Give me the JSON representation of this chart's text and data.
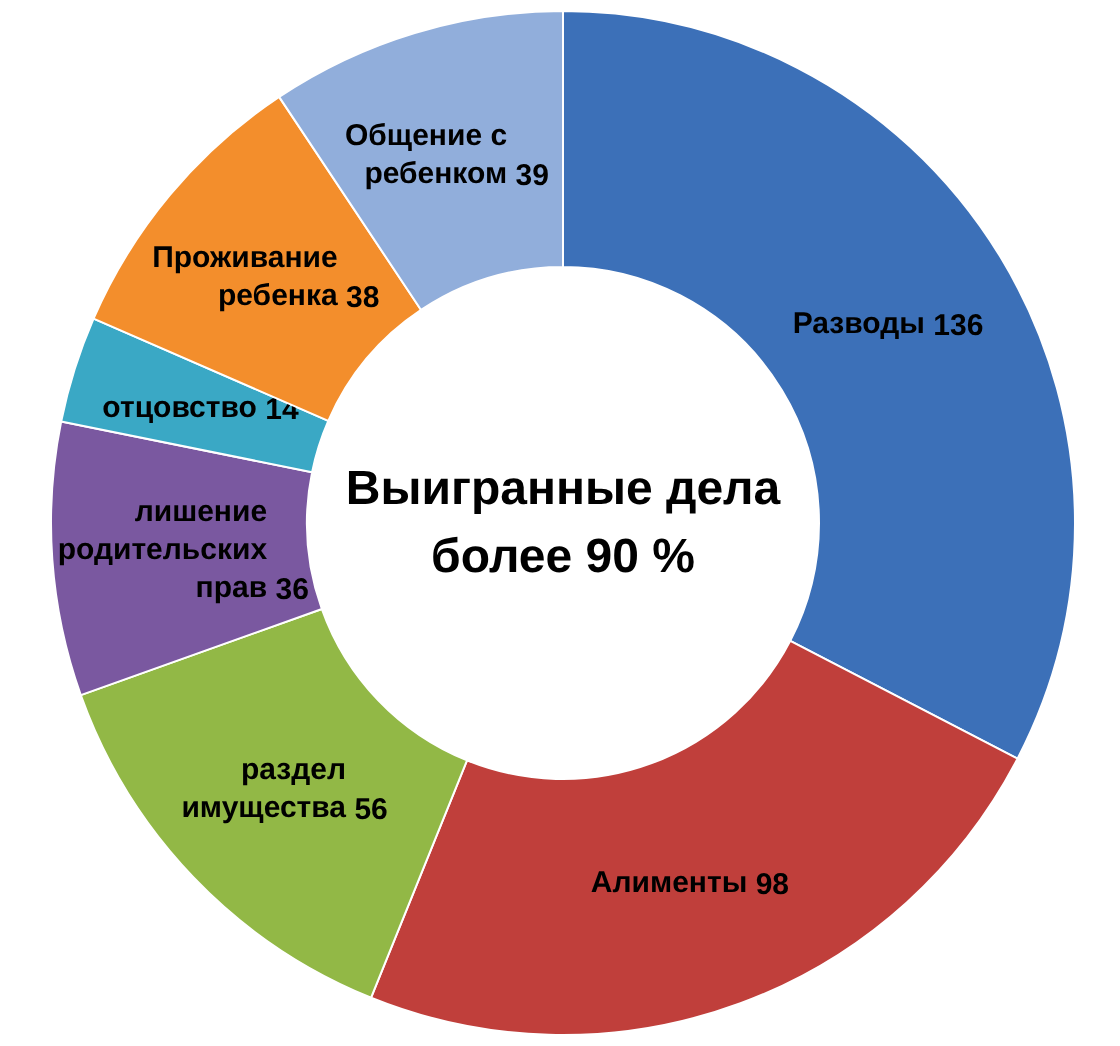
{
  "chart_data": {
    "type": "donut",
    "title": "Выигранные дела\nболее 90 %",
    "categories": [
      "Разводы",
      "Алименты",
      "раздел\nимущества",
      "лишение\nродительских\nправ",
      "отцовство",
      "Проживание\nребенка",
      "Общение с\nребенком"
    ],
    "values": [
      136,
      98,
      56,
      36,
      14,
      38,
      39
    ],
    "colors": [
      "#3c70b8",
      "#c03f3b",
      "#92b846",
      "#7a58a0",
      "#3aa8c5",
      "#f38e2c",
      "#91aedb"
    ],
    "data_labels": true
  }
}
